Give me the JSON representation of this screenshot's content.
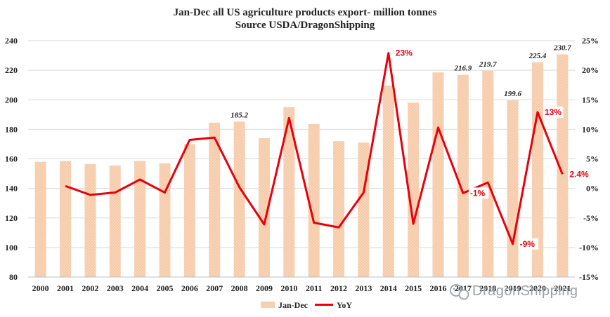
{
  "chart_data": {
    "type": "bar",
    "title": "Jan-Dec all US agriculture products export- million tonnes",
    "subtitle": "Source USDA/DragonShipping",
    "categories": [
      "2000",
      "2001",
      "2002",
      "2003",
      "2004",
      "2005",
      "2006",
      "2007",
      "2008",
      "2009",
      "2010",
      "2011",
      "2012",
      "2013",
      "2014",
      "2015",
      "2016",
      "2017",
      "2018",
      "2019",
      "2020",
      "2021"
    ],
    "series": [
      {
        "name": "Jan-Dec",
        "type": "bar",
        "axis": "left",
        "color": "#f6c9a7",
        "values": [
          158,
          158.5,
          156.5,
          155.5,
          158.5,
          157,
          170,
          184.5,
          185.2,
          174,
          195,
          183.5,
          172,
          171,
          209.5,
          198,
          218.5,
          216.9,
          219.7,
          199.6,
          225.4,
          230.7
        ]
      },
      {
        "name": "YoY",
        "type": "line",
        "axis": "right",
        "color": "#e8000b",
        "values": [
          null,
          0.4,
          -1.1,
          -0.7,
          1.5,
          -0.7,
          8.2,
          8.6,
          0.2,
          -6.1,
          11.9,
          -5.8,
          -6.6,
          -0.7,
          22.9,
          -6.0,
          10.3,
          -0.8,
          1.0,
          -9.4,
          12.9,
          2.4
        ]
      }
    ],
    "bar_labels": [
      {
        "index": 8,
        "text": "185.2"
      },
      {
        "index": 17,
        "text": "216.9"
      },
      {
        "index": 18,
        "text": "219.7"
      },
      {
        "index": 19,
        "text": "199.6"
      },
      {
        "index": 20,
        "text": "225.4"
      },
      {
        "index": 21,
        "text": "230.7"
      }
    ],
    "line_labels": [
      {
        "index": 14,
        "text": "23%"
      },
      {
        "index": 17,
        "text": "-1%"
      },
      {
        "index": 19,
        "text": "-9%"
      },
      {
        "index": 20,
        "text": "13%"
      },
      {
        "index": 21,
        "text": "2.4%"
      }
    ],
    "ylim_left": [
      80,
      240
    ],
    "yticks_left": [
      80,
      100,
      120,
      140,
      160,
      180,
      200,
      220,
      240
    ],
    "ylim_right": [
      -15,
      25
    ],
    "yticks_right": [
      -15,
      -10,
      -5,
      0,
      5,
      10,
      15,
      20,
      25
    ],
    "yticks_right_labels": [
      "-15%",
      "-10%",
      "-5%",
      "0%",
      "5%",
      "10%",
      "15%",
      "20%",
      "25%"
    ],
    "gridlines": true,
    "legend_position": "bottom",
    "legend": [
      "Jan-Dec",
      "YoY"
    ],
    "watermark": "DragonShipping"
  }
}
